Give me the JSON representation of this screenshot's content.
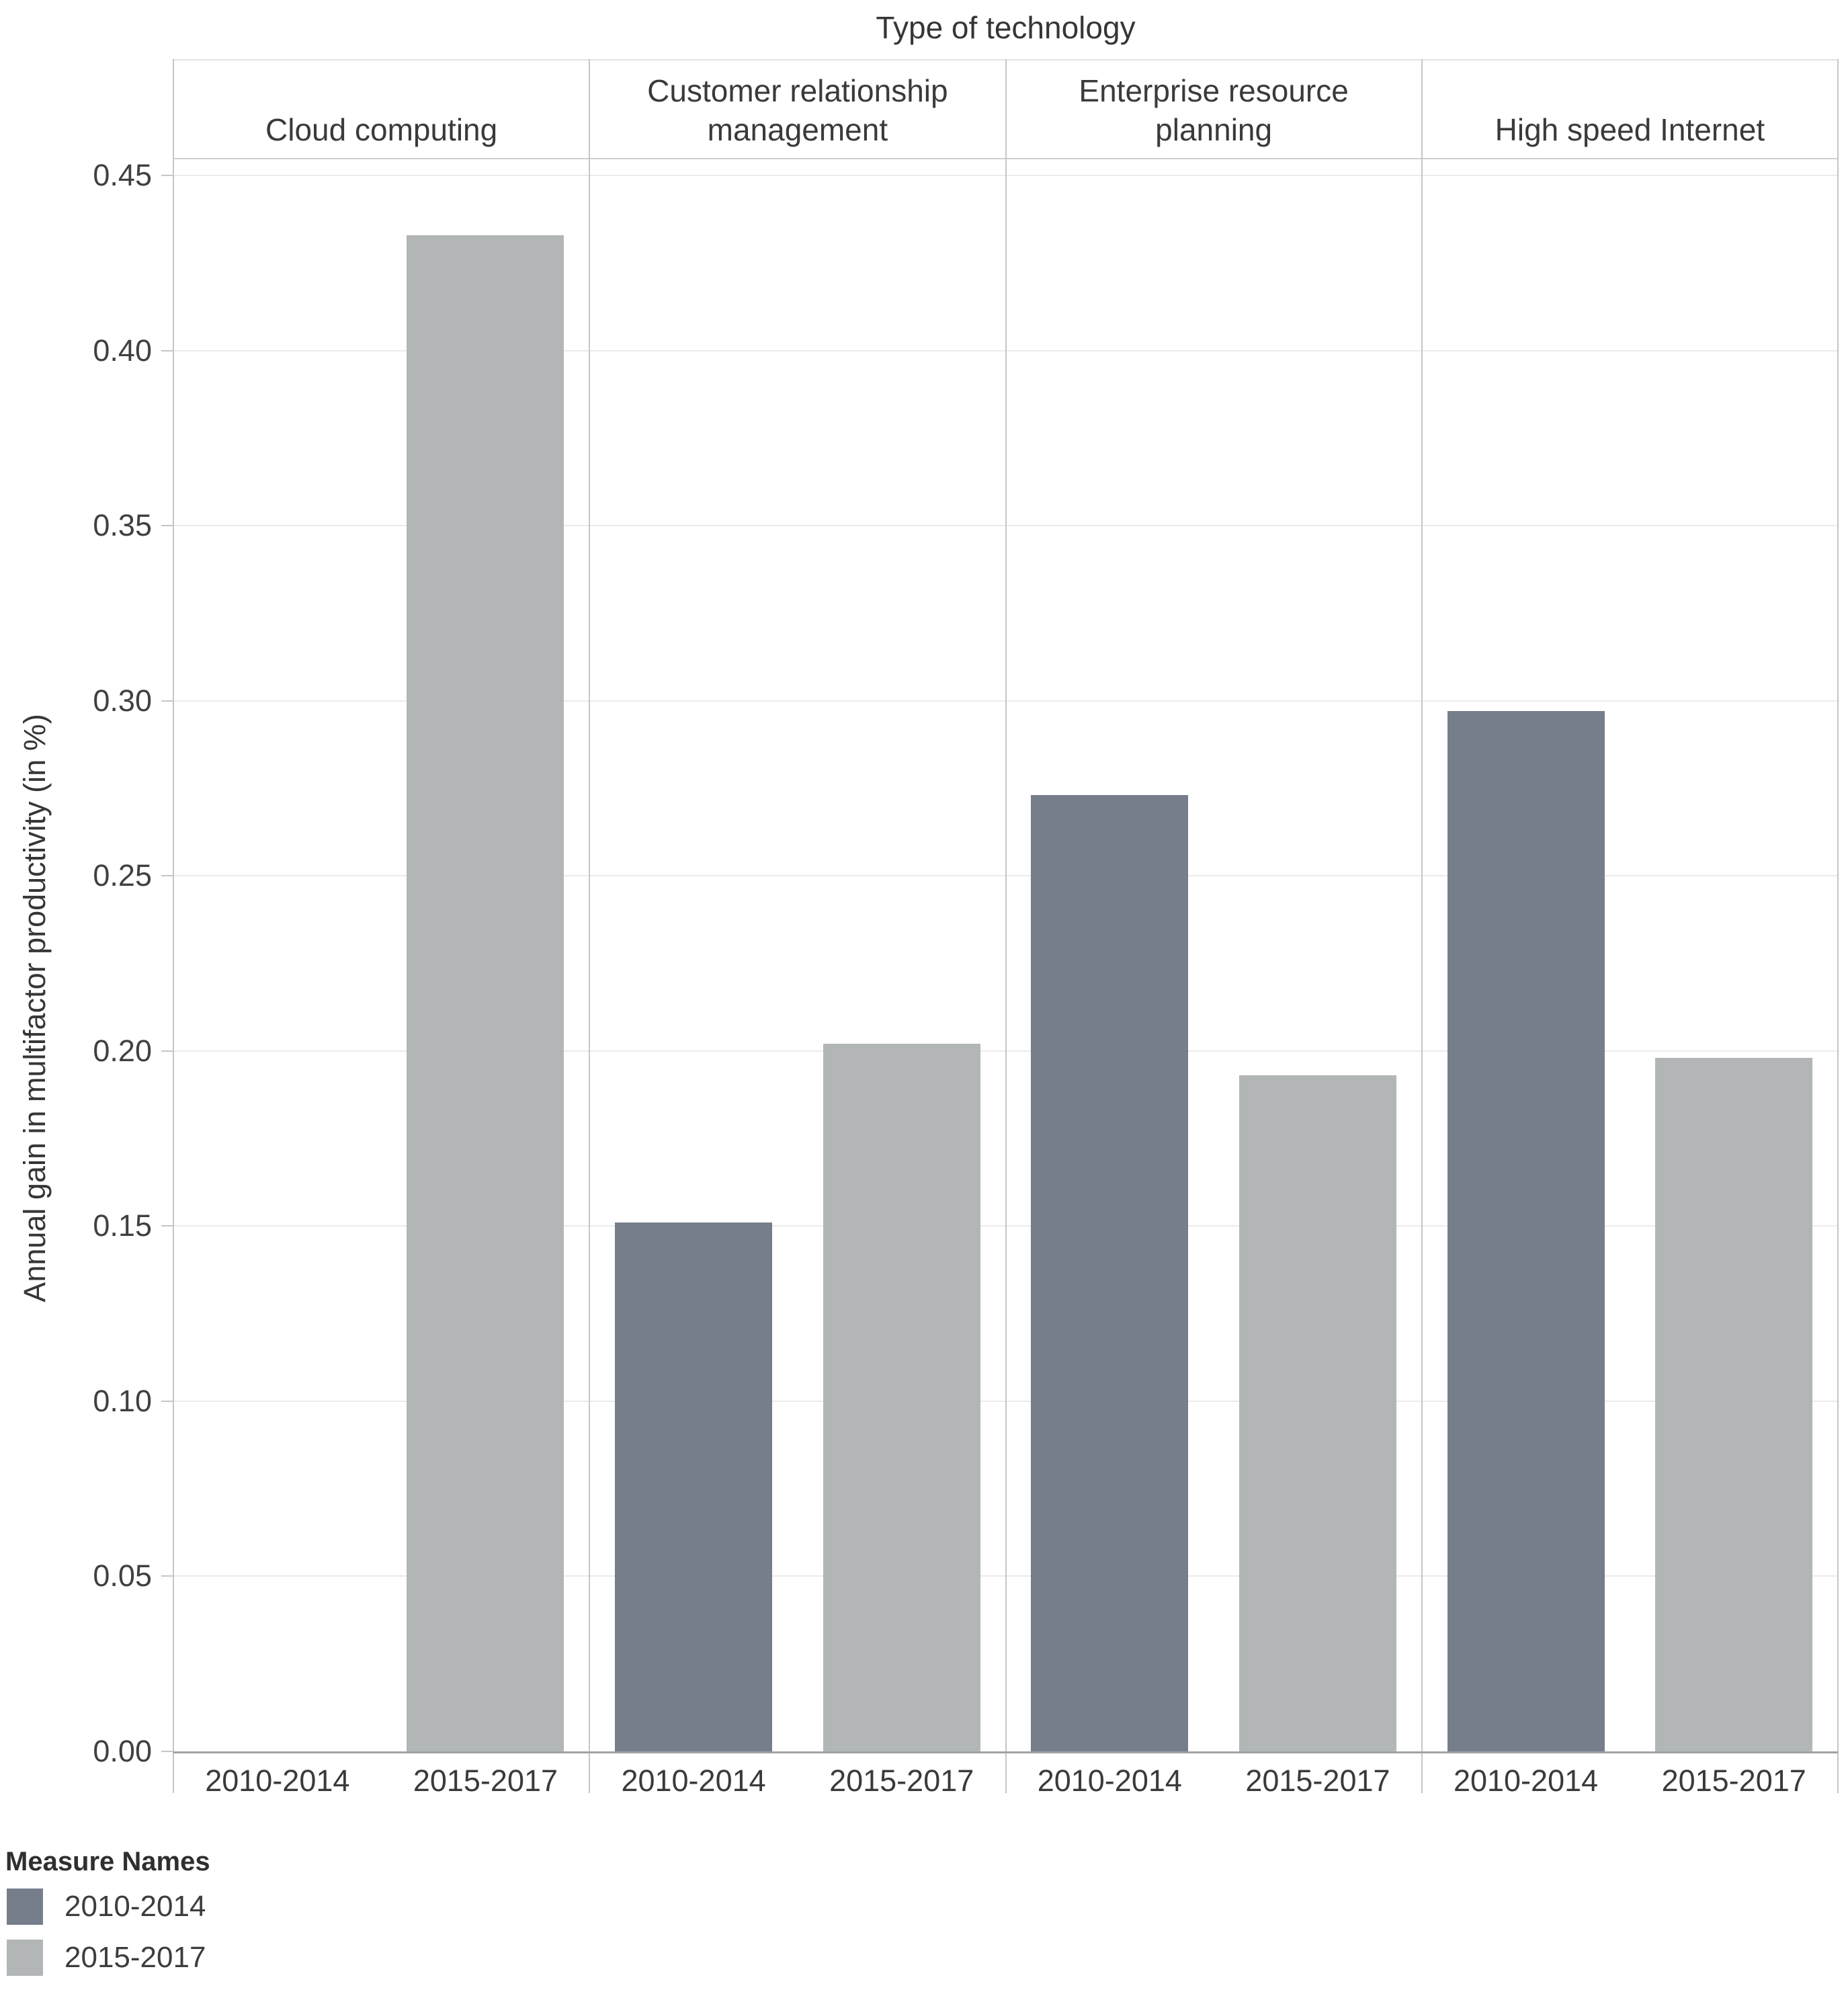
{
  "chart": {
    "title": "Type of technology",
    "y_axis_title": "Annual gain in multifactor productivity (in %)"
  },
  "legend": {
    "title": "Measure Names",
    "items": [
      {
        "label": "2010-2014",
        "color": "#767E8C"
      },
      {
        "label": "2015-2017",
        "color": "#B3B6B7"
      }
    ]
  },
  "chart_data": {
    "type": "bar",
    "title": "Type of technology",
    "ylabel": "Annual gain in multifactor productivity (in %)",
    "facets": [
      "Cloud computing",
      "Customer relationship management",
      "Enterprise resource planning",
      "High speed Internet"
    ],
    "categories": [
      "2010-2014",
      "2015-2017"
    ],
    "series": [
      {
        "name": "2010-2014",
        "color": "#767E8C",
        "values": [
          0.0,
          0.151,
          0.273,
          0.297
        ]
      },
      {
        "name": "2015-2017",
        "color": "#B3B6B7",
        "values": [
          0.433,
          0.202,
          0.193,
          0.198
        ]
      }
    ],
    "yticks": [
      "0.00",
      "0.05",
      "0.10",
      "0.15",
      "0.20",
      "0.25",
      "0.30",
      "0.35",
      "0.40",
      "0.45"
    ],
    "ylim": [
      0,
      0.455
    ],
    "grid": true,
    "legend_title": "Measure Names",
    "legend_position": "bottom-left"
  },
  "colors": {
    "bar_2010_2014": "#767E8C",
    "bar_2015_2017": "#B3B6B7",
    "gridline": "#EBEBEB",
    "axis_line": "#C6C6C6",
    "baseline": "#9EA3A6",
    "text": "#3D3D3D"
  }
}
